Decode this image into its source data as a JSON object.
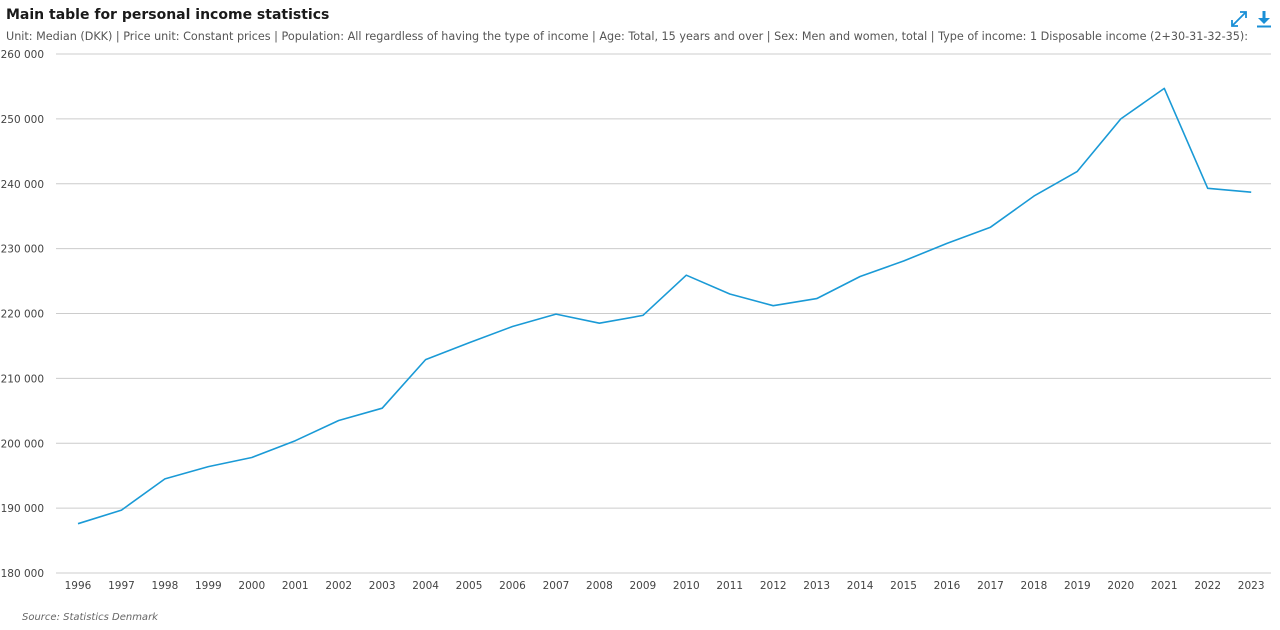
{
  "header": {
    "title": "Main table for personal income statistics",
    "subtitle": "Unit: Median (DKK) | Price unit: Constant prices | Population: All regardless of having the type of income | Age: Total, 15 years and over | Sex: Men and women, total | Type of income: 1 Disposable income (2+30-31-32-35):",
    "expand_icon": "expand-icon",
    "download_icon": "download-icon"
  },
  "footer": {
    "source": "Source: Statistics Denmark"
  },
  "colors": {
    "line": "#1a9ad6",
    "grid": "#cccccc",
    "icon": "#1a8fd6",
    "axis_text": "#444444"
  },
  "chart_data": {
    "type": "line",
    "title": "Main table for personal income statistics",
    "xlabel": "",
    "ylabel": "",
    "ylim": [
      180000,
      260000
    ],
    "yticks": [
      180000,
      190000,
      200000,
      210000,
      220000,
      230000,
      240000,
      250000,
      260000
    ],
    "ytick_labels": [
      "180 000",
      "190 000",
      "200 000",
      "210 000",
      "220 000",
      "230 000",
      "240 000",
      "250 000",
      "260 000"
    ],
    "grid": true,
    "legend": "none",
    "categories": [
      "1996",
      "1997",
      "1998",
      "1999",
      "2000",
      "2001",
      "2002",
      "2003",
      "2004",
      "2005",
      "2006",
      "2007",
      "2008",
      "2009",
      "2010",
      "2011",
      "2012",
      "2013",
      "2014",
      "2015",
      "2016",
      "2017",
      "2018",
      "2019",
      "2020",
      "2021",
      "2022",
      "2023"
    ],
    "series": [
      {
        "values": [
          187600,
          189700,
          194500,
          196400,
          197800,
          200400,
          203500,
          205400,
          212900,
          215500,
          218000,
          219900,
          218500,
          219700,
          225900,
          223000,
          221200,
          222300,
          225700,
          228100,
          230800,
          233300,
          238100,
          241900,
          250000,
          254700,
          239300,
          238700
        ]
      }
    ]
  }
}
